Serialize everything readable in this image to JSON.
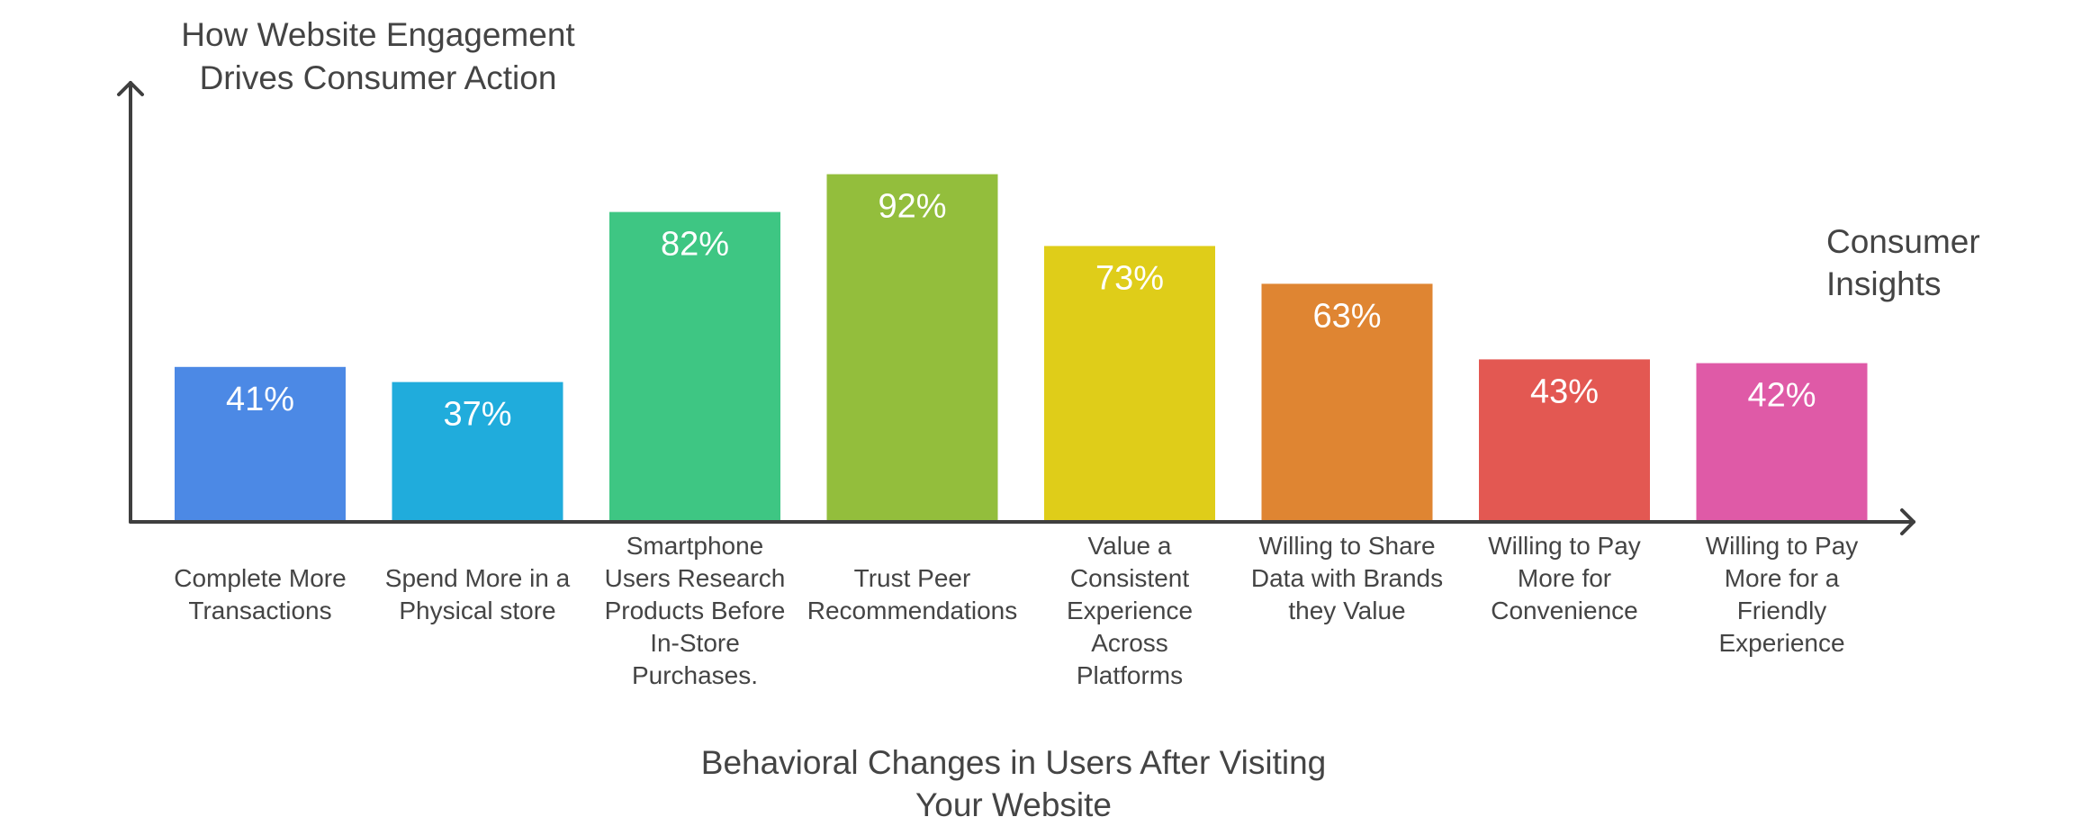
{
  "chart_data": {
    "type": "bar",
    "title": "How Website Engagement Drives Consumer Action",
    "title_lines": [
      "How Website Engagement",
      "Drives Consumer Action"
    ],
    "series_label_lines": [
      "Consumer",
      "Insights"
    ],
    "xlabel": "Behavioral Changes in Users After Visiting Your Website",
    "xlabel_lines": [
      "Behavioral Changes in Users After Visiting",
      "Your Website"
    ],
    "ylim": [
      0,
      100
    ],
    "grid": false,
    "categories": [
      "Complete More Transactions",
      "Spend More in a Physical store",
      "Smartphone Users Research Products Before In-Store Purchases.",
      "Trust Peer Recommendations",
      "Value a Consistent Experience Across Platforms",
      "Willing to Share Data with Brands they Value",
      "Willing to Pay More for Convenience",
      "Willing to Pay More for a Friendly Experience"
    ],
    "category_lines": [
      [
        "Complete More",
        "Transactions"
      ],
      [
        "Spend More in a",
        "Physical store"
      ],
      [
        "Smartphone",
        "Users Research",
        "Products Before",
        "In-Store",
        "Purchases."
      ],
      [
        "Trust Peer",
        "Recommendations"
      ],
      [
        "Value a",
        "Consistent",
        "Experience",
        "Across",
        "Platforms"
      ],
      [
        "Willing to Share",
        "Data with Brands",
        "they Value"
      ],
      [
        "Willing to Pay",
        "More for",
        "Convenience"
      ],
      [
        "Willing to Pay",
        "More for a",
        "Friendly",
        "Experience"
      ]
    ],
    "values": [
      41,
      37,
      82,
      92,
      73,
      63,
      43,
      42
    ],
    "value_labels": [
      "41%",
      "37%",
      "82%",
      "92%",
      "73%",
      "63%",
      "43%",
      "42%"
    ],
    "colors": [
      "#4c89e5",
      "#20acdc",
      "#3ec683",
      "#93be3c",
      "#dfcd19",
      "#df8532",
      "#e35852",
      "#df5aa7"
    ]
  }
}
